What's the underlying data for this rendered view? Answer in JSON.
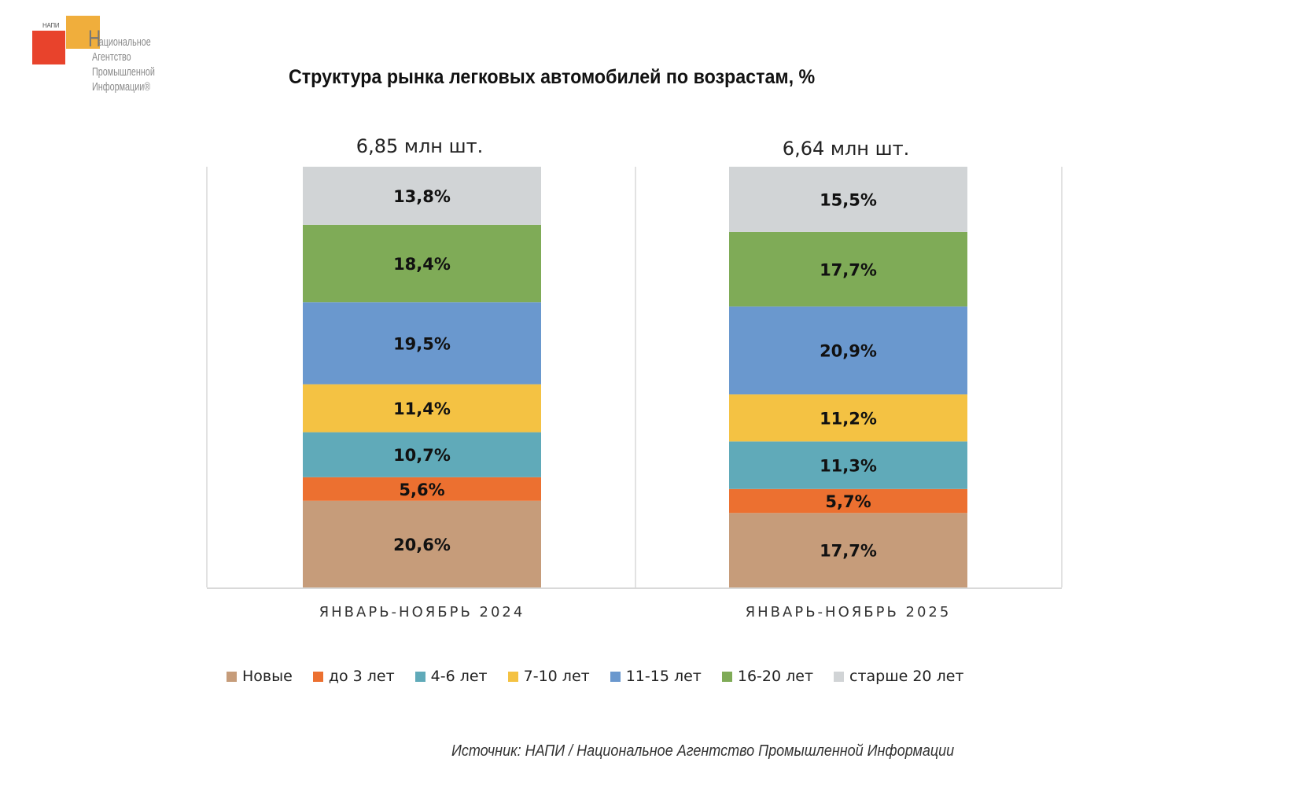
{
  "logo": {
    "abbr": "НАПИ",
    "big_letter": "Н",
    "lines": [
      "ациональное",
      "Агентство",
      "Промышленной",
      "Информации®"
    ],
    "colors": {
      "red": "#E8432C",
      "orange": "#F0AE3C"
    }
  },
  "source": "Источник: НАПИ / Национальное Агентство Промышленной Информации",
  "chart_data": {
    "type": "bar",
    "stacked": true,
    "percent_stacked": true,
    "title": "Структура рынка легковых автомобилей по возрастам, %",
    "xlabel": "",
    "ylabel": "",
    "ylim": [
      0,
      100
    ],
    "grid": false,
    "legend_position": "bottom",
    "categories": [
      "ЯНВАРЬ-НОЯБРЬ 2024",
      "ЯНВАРЬ-НОЯБРЬ 2025"
    ],
    "totals": [
      "6,85 млн шт.",
      "6,64 млн шт."
    ],
    "series": [
      {
        "name": "Новые",
        "color": "#C69C7A",
        "values": [
          20.6,
          17.7
        ],
        "labels": [
          "20,6%",
          "17,7%"
        ]
      },
      {
        "name": "до 3 лет",
        "color": "#EC7030",
        "values": [
          5.6,
          5.7
        ],
        "labels": [
          "5,6%",
          "5,7%"
        ]
      },
      {
        "name": "4-6 лет",
        "color": "#60AAB9",
        "values": [
          10.7,
          11.3
        ],
        "labels": [
          "10,7%",
          "11,3%"
        ]
      },
      {
        "name": "7-10 лет",
        "color": "#F4C243",
        "values": [
          11.4,
          11.2
        ],
        "labels": [
          "11,4%",
          "11,2%"
        ]
      },
      {
        "name": "11-15 лет",
        "color": "#6A98CE",
        "values": [
          19.5,
          20.9
        ],
        "labels": [
          "19,5%",
          "20,9%"
        ]
      },
      {
        "name": "16-20 лет",
        "color": "#7FAB57",
        "values": [
          18.4,
          17.7
        ],
        "labels": [
          "18,4%",
          "17,7%"
        ]
      },
      {
        "name": "старше 20 лет",
        "color": "#D1D4D6",
        "values": [
          13.8,
          15.5
        ],
        "labels": [
          "13,8%",
          "15,5%"
        ]
      }
    ]
  }
}
